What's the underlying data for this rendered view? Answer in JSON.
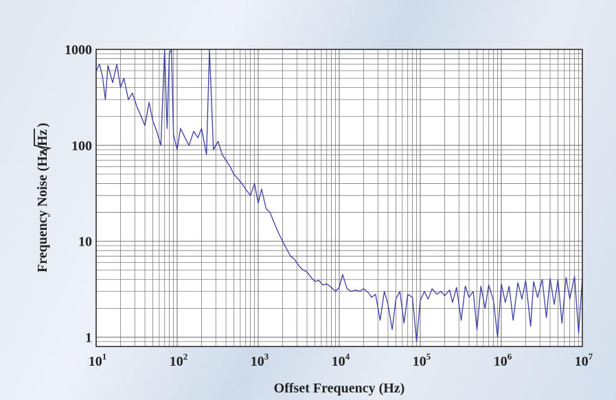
{
  "chart_data": {
    "type": "line",
    "xlabel": "Offset Frequency (Hz)",
    "ylabel_prefix": "Frequency Noise (Hz/",
    "ylabel_root": "Hz",
    "ylabel_suffix": ")",
    "x_scale": "log",
    "y_scale": "log",
    "xlim": [
      10,
      10000000
    ],
    "ylim": [
      0.8,
      1000
    ],
    "grid": true,
    "x_ticks": [
      {
        "base": "10",
        "exp": "1"
      },
      {
        "base": "10",
        "exp": "2"
      },
      {
        "base": "10",
        "exp": "3"
      },
      {
        "base": "10",
        "exp": "4"
      },
      {
        "base": "10",
        "exp": "5"
      },
      {
        "base": "10",
        "exp": "6"
      },
      {
        "base": "10",
        "exp": "7"
      }
    ],
    "y_ticks": [
      "1",
      "10",
      "100",
      "1000"
    ],
    "line_color": "#3c3ca8",
    "series": [
      {
        "x": [
          10,
          11,
          12,
          13,
          14,
          16,
          18,
          20,
          22,
          25,
          28,
          32,
          36,
          40,
          45,
          50,
          56,
          63,
          70,
          75,
          80,
          85,
          90,
          100,
          110,
          125,
          140,
          160,
          180,
          200,
          230,
          250,
          280,
          320,
          360,
          400,
          450,
          500,
          560,
          630,
          700,
          800,
          900,
          1000,
          1100,
          1250,
          1400,
          1600,
          1800,
          2000,
          2300,
          2500,
          2800,
          3200,
          3600,
          4000,
          4500,
          5000,
          5600,
          6300,
          7000,
          8000,
          9000,
          10000,
          11000,
          12500,
          14000,
          16000,
          18000,
          20000,
          23000,
          25000,
          28000,
          32000,
          36000,
          40000,
          45000,
          50000,
          56000,
          63000,
          70000,
          80000,
          90000,
          100000,
          112000,
          125000,
          140000,
          160000,
          180000,
          200000,
          230000,
          250000,
          280000,
          320000,
          360000,
          400000,
          450000,
          500000,
          560000,
          630000,
          700000,
          800000,
          900000,
          1000000,
          1120000,
          1250000,
          1400000,
          1600000,
          1800000,
          2000000,
          2300000,
          2500000,
          2800000,
          3200000,
          3600000,
          4000000,
          4500000,
          5000000,
          5600000,
          6300000,
          7000000,
          8000000,
          9000000,
          10000000
        ],
        "y": [
          600,
          700,
          520,
          300,
          680,
          450,
          700,
          400,
          500,
          300,
          350,
          250,
          200,
          160,
          280,
          180,
          140,
          100,
          1000,
          150,
          900,
          1000,
          130,
          90,
          150,
          120,
          100,
          140,
          120,
          150,
          80,
          1000,
          90,
          110,
          80,
          70,
          60,
          50,
          45,
          40,
          35,
          30,
          40,
          25,
          35,
          22,
          20,
          15,
          12,
          10,
          8,
          7,
          6.5,
          5.5,
          5,
          4.8,
          4.2,
          3.8,
          3.9,
          3.5,
          3.6,
          3.3,
          3.0,
          3.3,
          4.5,
          3.2,
          3.0,
          3.1,
          3.0,
          3.2,
          2.9,
          2.6,
          2.8,
          1.5,
          3.0,
          2.2,
          1.2,
          2.5,
          3.0,
          1.4,
          2.8,
          2.6,
          0.9,
          2.4,
          3.0,
          2.5,
          3.2,
          2.8,
          3.0,
          2.7,
          3.1,
          2.3,
          3.3,
          1.5,
          3.4,
          2.6,
          3.0,
          1.2,
          3.4,
          2.0,
          3.5,
          2.4,
          1.0,
          3.6,
          2.3,
          3.4,
          1.5,
          3.7,
          2.5,
          3.9,
          1.3,
          3.8,
          2.6,
          4.0,
          1.6,
          4.1,
          2.2,
          4.0,
          1.4,
          4.2,
          2.5,
          4.3,
          1.1,
          4.2
        ]
      }
    ]
  }
}
